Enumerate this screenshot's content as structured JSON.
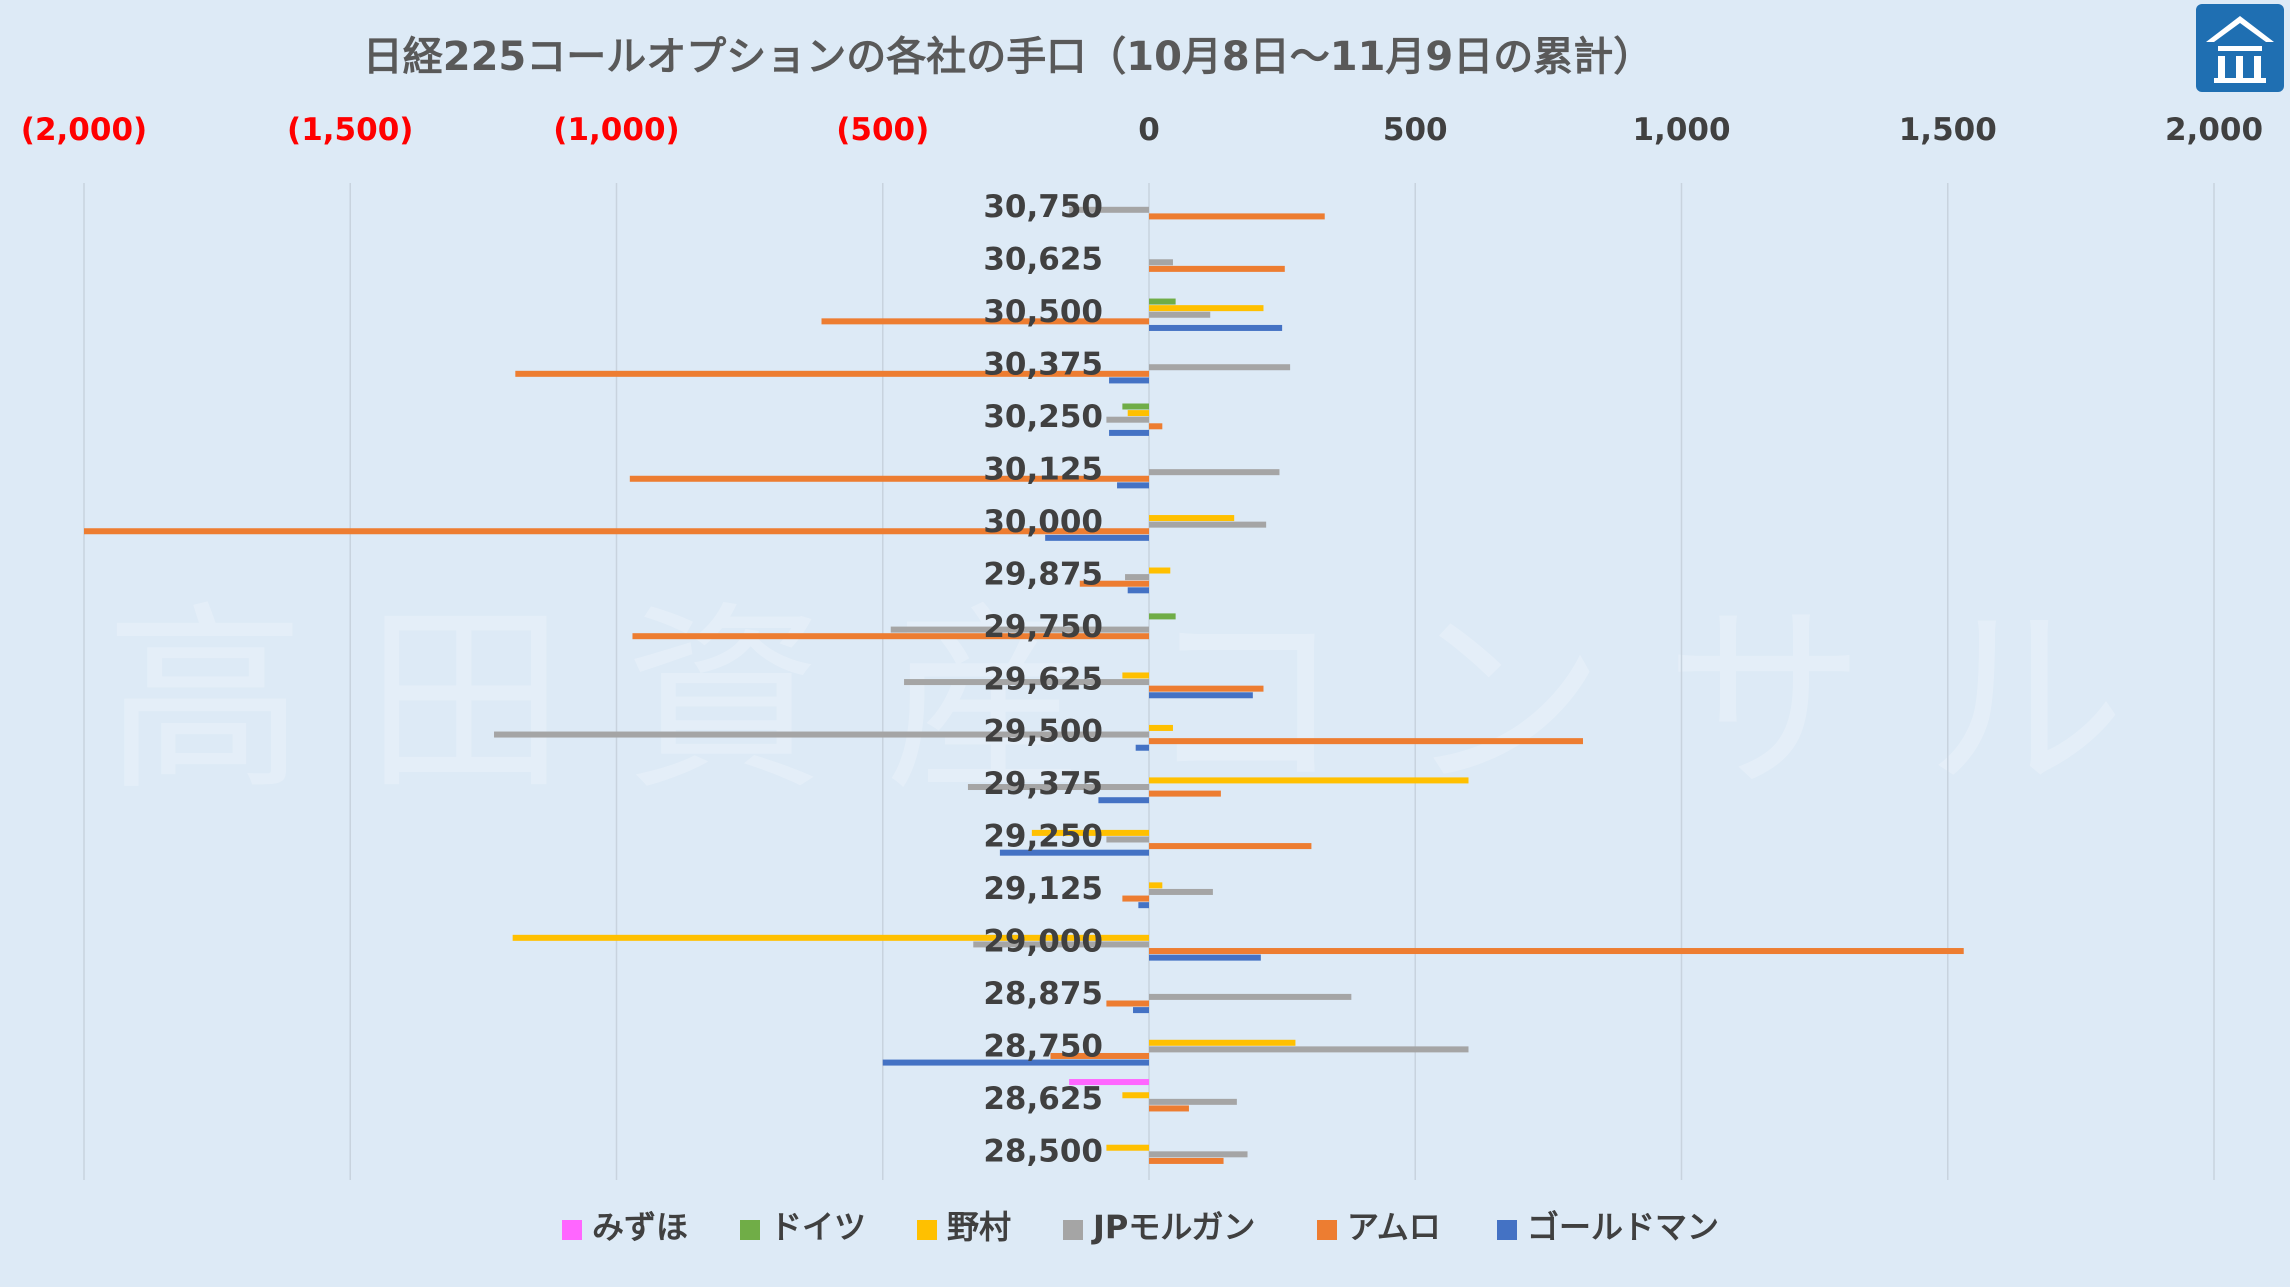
{
  "chart_data": {
    "type": "bar",
    "orientation": "horizontal",
    "title": "日経225コールオプションの各社の手口（10月8日～11月9日の累計）",
    "watermark": "高田資産コンサル",
    "xlim": [
      -2000,
      2000
    ],
    "x_ticks": [
      {
        "value": -2000,
        "label": "(2,000)"
      },
      {
        "value": -1500,
        "label": "(1,500)"
      },
      {
        "value": -1000,
        "label": "(1,000)"
      },
      {
        "value": -500,
        "label": "(500)"
      },
      {
        "value": 0,
        "label": "0"
      },
      {
        "value": 500,
        "label": "500"
      },
      {
        "value": 1000,
        "label": "1,000"
      },
      {
        "value": 1500,
        "label": "1,500"
      },
      {
        "value": 2000,
        "label": "2,000"
      }
    ],
    "negative_tick_color": "#ff0000",
    "positive_tick_color": "#404040",
    "grid": true,
    "legend_position": "bottom",
    "categories": [
      "30,750",
      "30,625",
      "30,500",
      "30,375",
      "30,250",
      "30,125",
      "30,000",
      "29,875",
      "29,750",
      "29,625",
      "29,500",
      "29,375",
      "29,250",
      "29,125",
      "29,000",
      "28,875",
      "28,750",
      "28,625",
      "28,500"
    ],
    "series": [
      {
        "name": "みずほ",
        "color": "#ff66ff",
        "values": [
          0,
          0,
          0,
          0,
          0,
          0,
          0,
          0,
          0,
          0,
          0,
          0,
          0,
          0,
          0,
          0,
          0,
          -150,
          0
        ]
      },
      {
        "name": "ドイツ",
        "color": "#70ad47",
        "values": [
          0,
          0,
          50,
          0,
          -50,
          0,
          0,
          0,
          50,
          0,
          0,
          0,
          0,
          0,
          0,
          0,
          0,
          0,
          0
        ]
      },
      {
        "name": "野村",
        "color": "#ffc000",
        "values": [
          0,
          0,
          215,
          0,
          -40,
          0,
          160,
          40,
          0,
          -50,
          45,
          600,
          -220,
          25,
          -1195,
          0,
          275,
          -50,
          -80
        ]
      },
      {
        "name": "JPモルガン",
        "color": "#a5a5a5",
        "values": [
          -150,
          45,
          115,
          265,
          -80,
          245,
          220,
          -45,
          -485,
          -460,
          -1230,
          -340,
          -80,
          120,
          -330,
          380,
          600,
          165,
          185
        ]
      },
      {
        "name": "アムロ",
        "color": "#ed7d31",
        "values": [
          330,
          255,
          -615,
          -1190,
          25,
          -975,
          -2000,
          -130,
          -970,
          215,
          815,
          135,
          305,
          -50,
          1530,
          -80,
          -185,
          75,
          140
        ]
      },
      {
        "name": "ゴールドマン",
        "color": "#4472c4",
        "values": [
          0,
          0,
          250,
          -75,
          -75,
          -60,
          -195,
          -40,
          0,
          195,
          -25,
          -95,
          -280,
          -20,
          210,
          -30,
          -500,
          0,
          0
        ]
      }
    ]
  }
}
